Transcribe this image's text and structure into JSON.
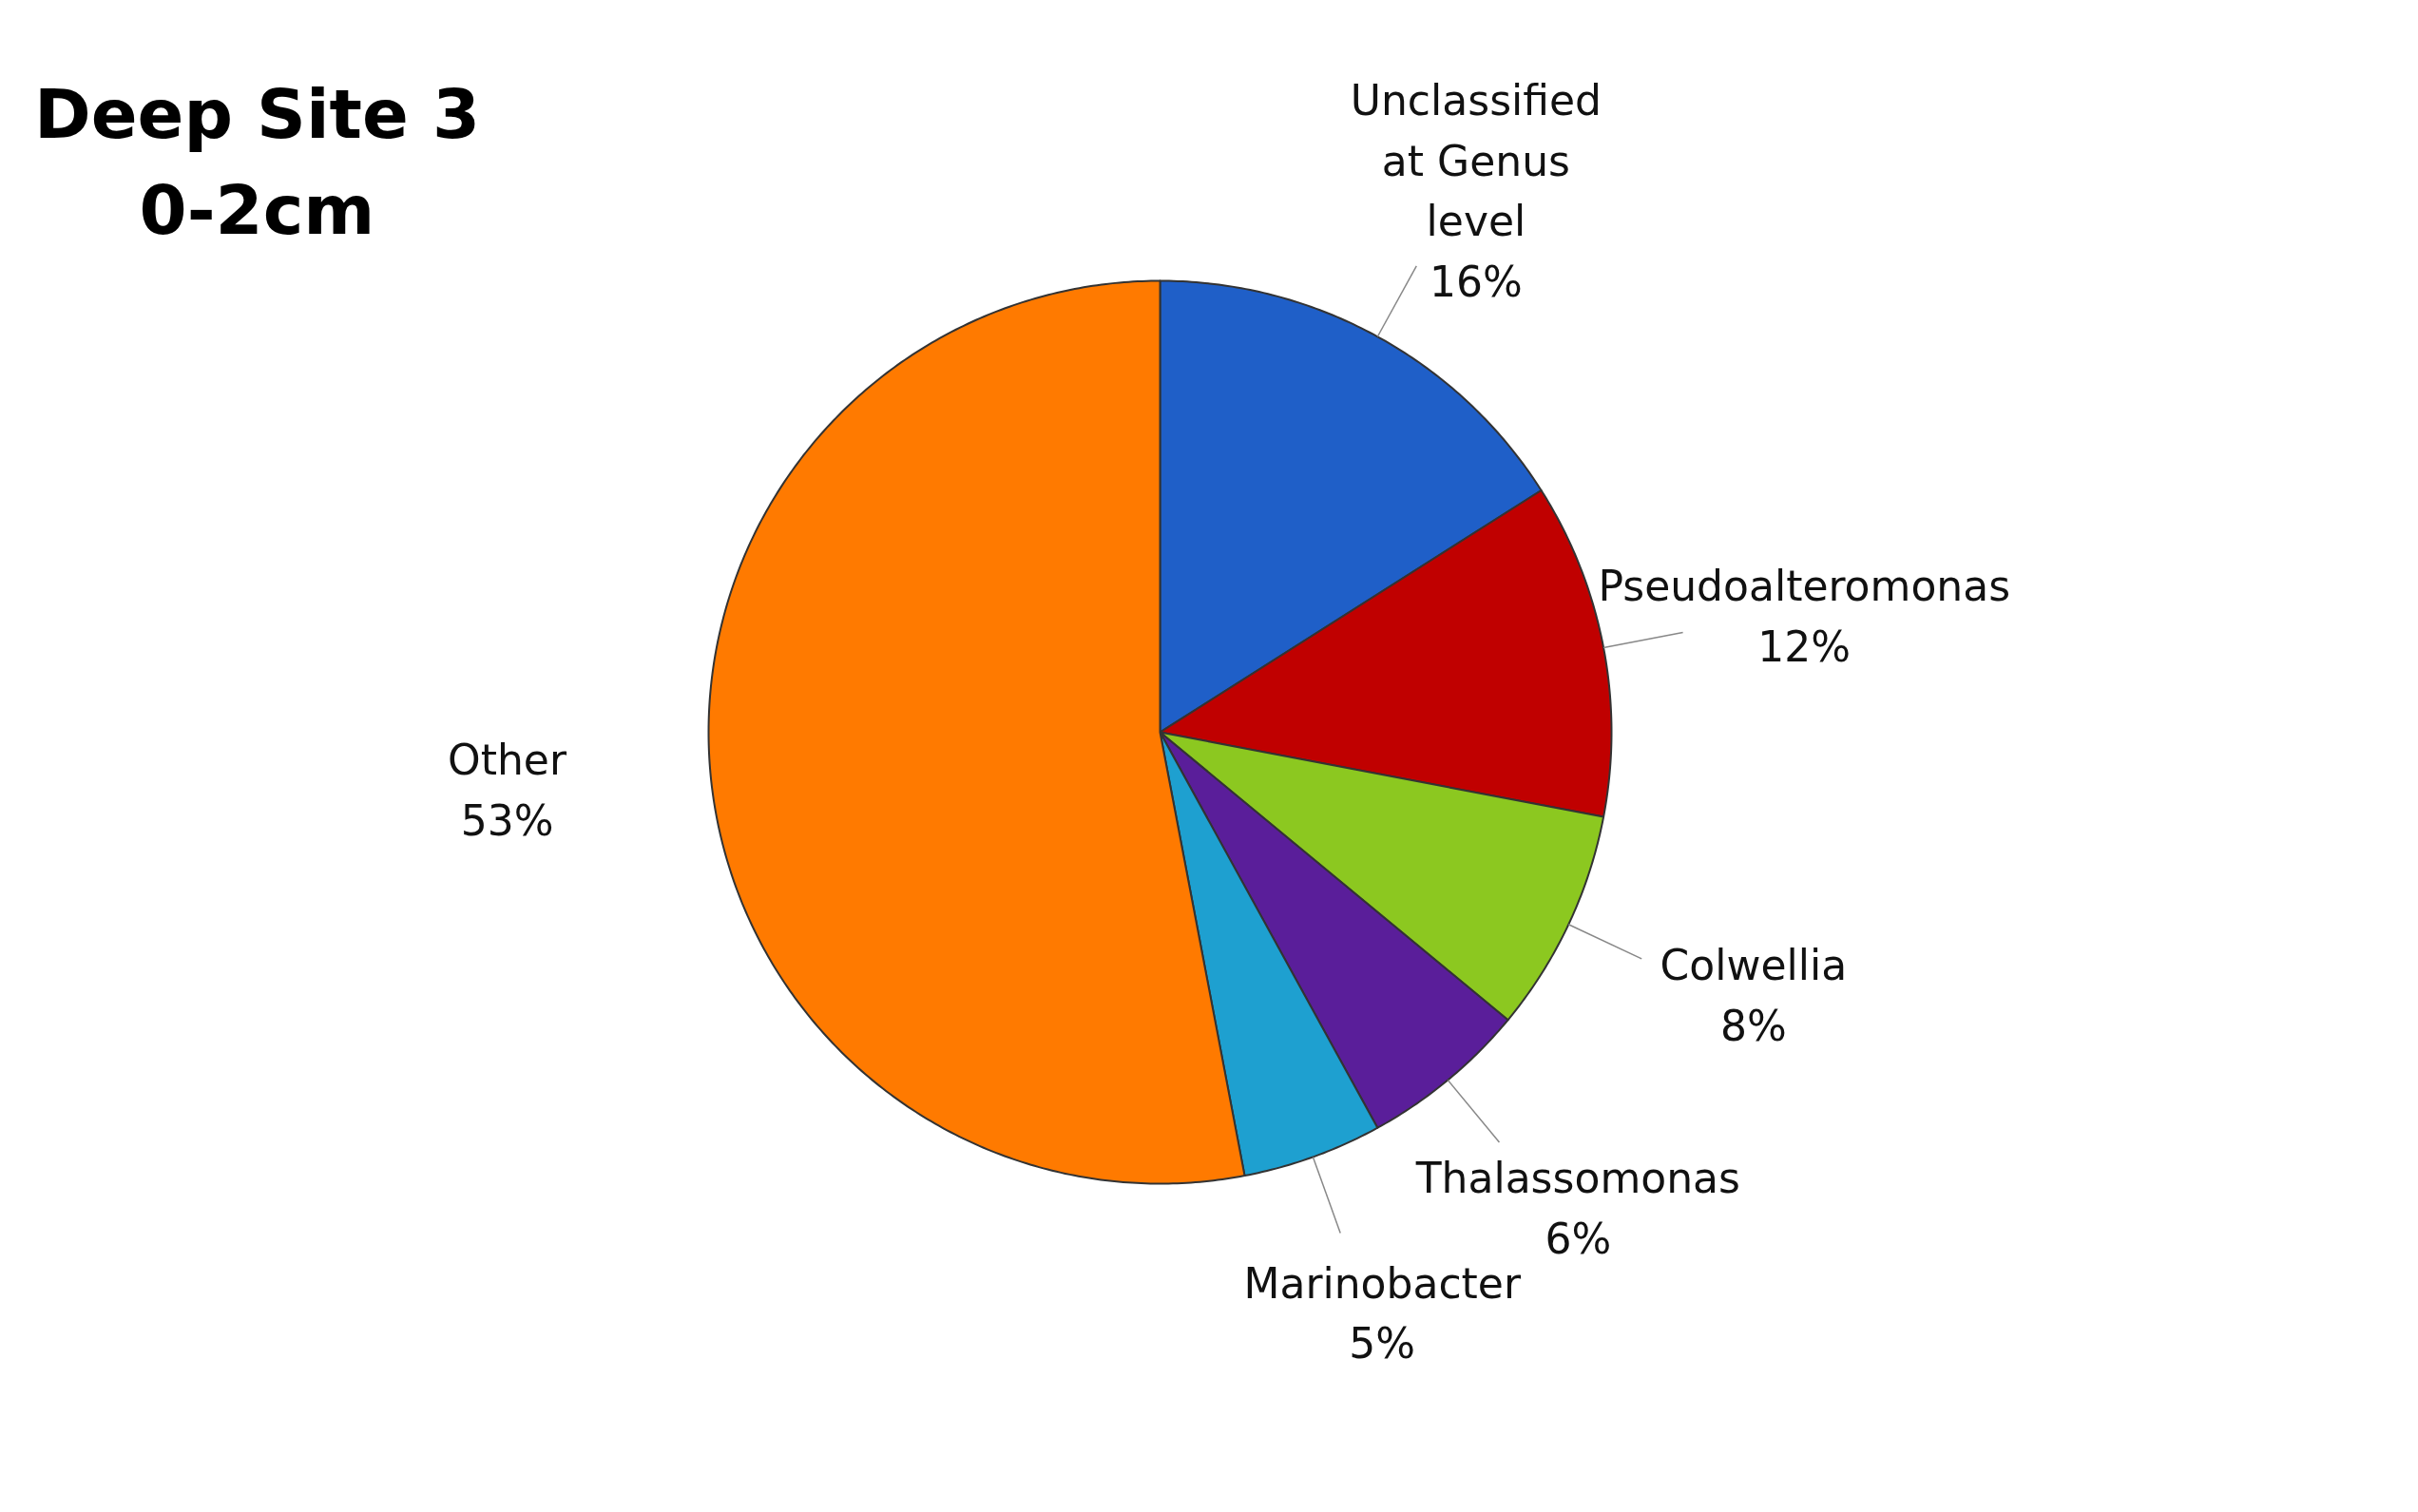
{
  "chart_data": {
    "type": "pie",
    "title": "Deep Site 3\n0-2cm",
    "categories": [
      "Unclassified at Genus level",
      "Pseudoalteromonas",
      "Colwellia",
      "Thalassomonas",
      "Marinobacter",
      "Other"
    ],
    "values": [
      16,
      12,
      8,
      6,
      5,
      53
    ],
    "colors": [
      "#1f5fc8",
      "#c00000",
      "#8cc820",
      "#5a1e9a",
      "#1ea0d0",
      "#ff7a00"
    ],
    "value_labels": [
      "16%",
      "12%",
      "8%",
      "6%",
      "5%",
      "53%"
    ],
    "legend": false
  }
}
